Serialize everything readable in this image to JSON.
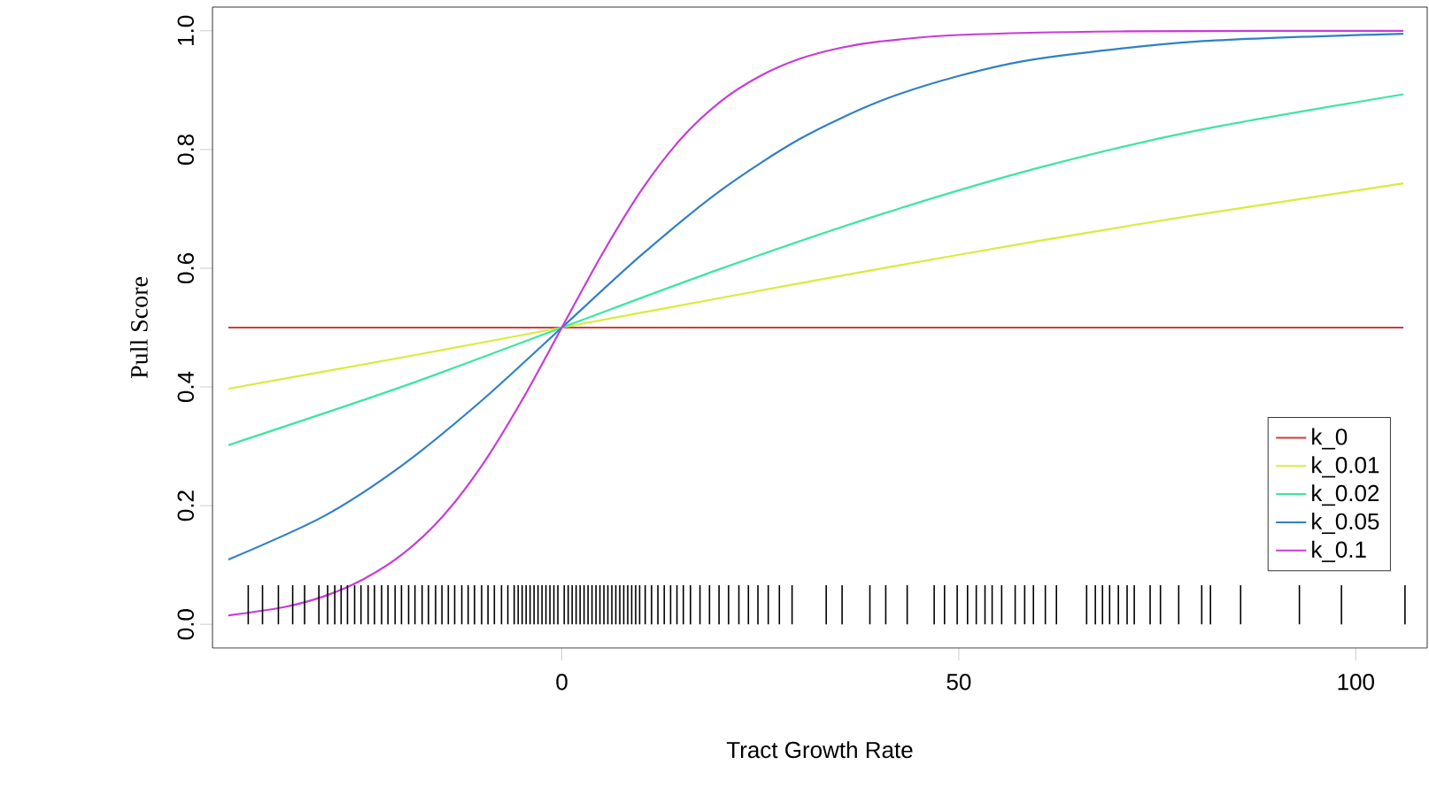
{
  "chart_data": {
    "type": "line",
    "xlabel": "Tract Growth Rate",
    "ylabel": "Pull Score",
    "xlim": [
      -44,
      109
    ],
    "ylim": [
      -0.04,
      1.04
    ],
    "xticks": [
      0,
      50,
      100
    ],
    "yticks": [
      {
        "value": 0,
        "label": "0.0"
      },
      {
        "value": 0.2,
        "label": "0.2"
      },
      {
        "value": 0.4,
        "label": "0.4"
      },
      {
        "value": 0.6,
        "label": "0.6"
      },
      {
        "value": 0.8,
        "label": "0.8"
      },
      {
        "value": 1,
        "label": "1.0"
      }
    ],
    "legend": "bottom right",
    "grid": false,
    "series": [
      {
        "name": "k_0",
        "color": "#d03c3c",
        "x": [
          -42,
          106
        ],
        "values": [
          0.5,
          0.5
        ]
      },
      {
        "name": "k_0.01",
        "color": "#d8ec3c",
        "x": [
          -42,
          -20,
          0,
          20,
          40,
          60,
          80,
          106
        ],
        "values": [
          0.397,
          0.45,
          0.5,
          0.55,
          0.599,
          0.646,
          0.69,
          0.743
        ]
      },
      {
        "name": "k_0.02",
        "color": "#3ce6a0",
        "x": [
          -42,
          -20,
          0,
          20,
          40,
          60,
          80,
          106
        ],
        "values": [
          0.302,
          0.401,
          0.5,
          0.599,
          0.69,
          0.769,
          0.832,
          0.893
        ]
      },
      {
        "name": "k_0.05",
        "color": "#3080c8",
        "x": [
          -42,
          -30,
          -20,
          -10,
          0,
          10,
          20,
          30,
          40,
          50,
          60,
          80,
          106
        ],
        "values": [
          0.109,
          0.182,
          0.269,
          0.378,
          0.5,
          0.622,
          0.731,
          0.818,
          0.881,
          0.924,
          0.953,
          0.982,
          0.995
        ]
      },
      {
        "name": "k_0.1",
        "color": "#c83cd8",
        "x": [
          -42,
          -35,
          -30,
          -25,
          -20,
          -15,
          -10,
          -5,
          0,
          5,
          10,
          15,
          20,
          25,
          30,
          35,
          40,
          50,
          70,
          106
        ],
        "values": [
          0.015,
          0.029,
          0.047,
          0.076,
          0.119,
          0.182,
          0.269,
          0.378,
          0.5,
          0.622,
          0.731,
          0.818,
          0.881,
          0.924,
          0.953,
          0.971,
          0.982,
          0.993,
          0.999,
          1.0
        ]
      },
      {
        "type": "bar",
        "color": "#000000",
        "x": [
          -39.5,
          -37.7,
          -35.7,
          -33.9,
          -32.4,
          -30.6,
          -29.5,
          -28.6,
          -27.8,
          -27,
          -26.1,
          -25.3,
          -24.4,
          -23.6,
          -22.7,
          -21.9,
          -21,
          -20.2,
          -19.3,
          -18.5,
          -17.6,
          -16.8,
          -15.9,
          -15.1,
          -14.3,
          -13.5,
          -12.6,
          -11.8,
          -11,
          -10.1,
          -9.3,
          -8.5,
          -7.6,
          -6.8,
          -6,
          -5.5,
          -5,
          -4.5,
          -4,
          -3.5,
          -3,
          -2.5,
          -2,
          -1.5,
          -1,
          -0.5,
          0.3,
          0.8,
          1.3,
          1.8,
          2.3,
          2.8,
          3.3,
          3.8,
          4.3,
          4.8,
          5.3,
          5.8,
          6.3,
          6.8,
          7.3,
          7.8,
          8.3,
          8.8,
          9.3,
          9.8,
          10.5,
          11.3,
          12.1,
          12.9,
          13.7,
          14.5,
          15.3,
          16.2,
          17.4,
          18.6,
          19.8,
          21,
          22.3,
          23.5,
          24.7,
          26,
          27.4,
          29,
          33.3,
          35.3,
          38.8,
          40.8,
          43.5,
          46.9,
          48.2,
          49.8,
          51.1,
          52.2,
          53.3,
          54.2,
          55.4,
          57.1,
          58.3,
          59.4,
          60.9,
          62.3,
          66.1,
          67.2,
          68.1,
          69,
          70.1,
          71.2,
          72.1,
          74.1,
          75.4,
          77.7,
          80.6,
          81.7,
          85.5,
          92.9,
          98.2,
          106.2
        ],
        "values": [
          0.066,
          0.066,
          0.066,
          0.066,
          0.066,
          0.066,
          0.066,
          0.066,
          0.066,
          0.066,
          0.066,
          0.066,
          0.066,
          0.066,
          0.066,
          0.066,
          0.066,
          0.066,
          0.066,
          0.066,
          0.066,
          0.066,
          0.066,
          0.066,
          0.066,
          0.066,
          0.066,
          0.066,
          0.066,
          0.066,
          0.066,
          0.066,
          0.066,
          0.066,
          0.066,
          0.066,
          0.066,
          0.066,
          0.066,
          0.066,
          0.066,
          0.066,
          0.066,
          0.066,
          0.066,
          0.066,
          0.066,
          0.066,
          0.066,
          0.066,
          0.066,
          0.066,
          0.066,
          0.066,
          0.066,
          0.066,
          0.066,
          0.066,
          0.066,
          0.066,
          0.066,
          0.066,
          0.066,
          0.066,
          0.066,
          0.066,
          0.066,
          0.066,
          0.066,
          0.066,
          0.066,
          0.066,
          0.066,
          0.066,
          0.066,
          0.066,
          0.066,
          0.066,
          0.066,
          0.066,
          0.066,
          0.066,
          0.066,
          0.066,
          0.066,
          0.066,
          0.066,
          0.066,
          0.066,
          0.066,
          0.066,
          0.066,
          0.066,
          0.066,
          0.066,
          0.066,
          0.066,
          0.066,
          0.066,
          0.066,
          0.066,
          0.066,
          0.066,
          0.066,
          0.066,
          0.066,
          0.066,
          0.066,
          0.066,
          0.066,
          0.066,
          0.066,
          0.066,
          0.066,
          0.066,
          0.066,
          0.066,
          0.066
        ]
      }
    ]
  }
}
